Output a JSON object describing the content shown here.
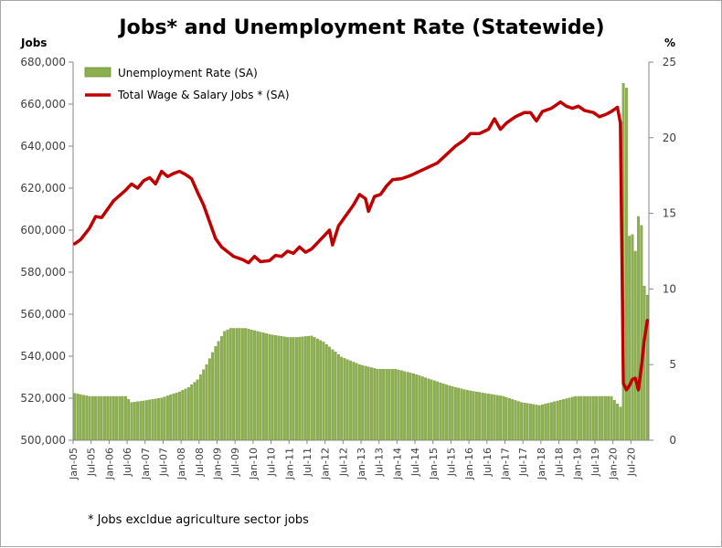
{
  "chart_data": {
    "type": "bar+line",
    "title": "Jobs* and Unemployment Rate (Statewide)",
    "left_axis_label": "Jobs",
    "right_axis_label": "%",
    "footnote": "* Jobs excldue agriculture sector jobs",
    "left_ylim": [
      500000,
      680000
    ],
    "left_yticks": [
      "500,000",
      "520,000",
      "540,000",
      "560,000",
      "580,000",
      "600,000",
      "620,000",
      "640,000",
      "660,000",
      "680,000"
    ],
    "right_ylim": [
      0,
      25
    ],
    "right_yticks": [
      "0",
      "5",
      "10",
      "15",
      "20",
      "25"
    ],
    "x_tick_labels": [
      "Jan-05",
      "Jul-05",
      "Jan-06",
      "Jul-06",
      "Jan-07",
      "Jul-07",
      "Jan-08",
      "Jul-08",
      "Jan-09",
      "Jul-09",
      "Jan-10",
      "Jul-10",
      "Jan-11",
      "Jul-11",
      "Jan-12",
      "Jul-12",
      "Jan-13",
      "Jul-13",
      "Jan-14",
      "Jul-14",
      "Jan-15",
      "Jul-15",
      "Jan-16",
      "Jul-16",
      "Jan-17",
      "Jul-17",
      "Jan-18",
      "Jul-18",
      "Jan-19",
      "Jul-19",
      "Jan-20",
      "Jul-20"
    ],
    "x_start": "2005-01",
    "x_end": "2020-12",
    "grid": false,
    "legend_position": "top-left",
    "colors": {
      "bars": "#8db04e",
      "bar_edge": "#6f8f38",
      "line": "#c00000"
    },
    "series": [
      {
        "name": "Unemployment Rate (SA)",
        "type": "bar",
        "axis": "right",
        "anchors": [
          [
            "2005-01",
            3.1
          ],
          [
            "2005-06",
            2.9
          ],
          [
            "2006-06",
            2.9
          ],
          [
            "2006-08",
            2.5
          ],
          [
            "2006-12",
            2.6
          ],
          [
            "2007-06",
            2.8
          ],
          [
            "2007-12",
            3.2
          ],
          [
            "2008-03",
            3.5
          ],
          [
            "2008-06",
            4.0
          ],
          [
            "2008-09",
            5.0
          ],
          [
            "2008-12",
            6.2
          ],
          [
            "2009-03",
            7.2
          ],
          [
            "2009-05",
            7.4
          ],
          [
            "2009-10",
            7.4
          ],
          [
            "2010-06",
            7.0
          ],
          [
            "2010-12",
            6.8
          ],
          [
            "2011-03",
            6.8
          ],
          [
            "2011-08",
            6.9
          ],
          [
            "2011-12",
            6.5
          ],
          [
            "2012-06",
            5.5
          ],
          [
            "2012-12",
            5.0
          ],
          [
            "2013-06",
            4.7
          ],
          [
            "2013-12",
            4.7
          ],
          [
            "2014-06",
            4.4
          ],
          [
            "2014-12",
            4.0
          ],
          [
            "2015-06",
            3.6
          ],
          [
            "2015-12",
            3.3
          ],
          [
            "2016-06",
            3.1
          ],
          [
            "2016-12",
            2.9
          ],
          [
            "2017-06",
            2.5
          ],
          [
            "2017-12",
            2.3
          ],
          [
            "2018-06",
            2.6
          ],
          [
            "2018-12",
            2.9
          ],
          [
            "2019-06",
            2.9
          ],
          [
            "2019-12",
            2.9
          ],
          [
            "2020-02",
            2.4
          ],
          [
            "2020-03",
            2.2
          ],
          [
            "2020-04",
            23.6
          ],
          [
            "2020-05",
            23.3
          ],
          [
            "2020-06",
            13.5
          ],
          [
            "2020-07",
            13.6
          ],
          [
            "2020-08",
            12.5
          ],
          [
            "2020-09",
            14.8
          ],
          [
            "2020-10",
            14.2
          ],
          [
            "2020-11",
            10.2
          ],
          [
            "2020-12",
            9.6
          ]
        ]
      },
      {
        "name": "Total Wage & Salary Jobs * (SA)",
        "type": "line",
        "axis": "left",
        "anchors": [
          [
            "2005-01",
            593500
          ],
          [
            "2005-03",
            595500
          ],
          [
            "2005-06",
            601000
          ],
          [
            "2005-08",
            606500
          ],
          [
            "2005-10",
            606000
          ],
          [
            "2005-12",
            610000
          ],
          [
            "2006-02",
            614000
          ],
          [
            "2006-06",
            619000
          ],
          [
            "2006-08",
            622000
          ],
          [
            "2006-10",
            620000
          ],
          [
            "2006-12",
            623500
          ],
          [
            "2007-02",
            625000
          ],
          [
            "2007-04",
            622000
          ],
          [
            "2007-06",
            628000
          ],
          [
            "2007-08",
            625500
          ],
          [
            "2007-10",
            627000
          ],
          [
            "2007-12",
            628000
          ],
          [
            "2008-02",
            626500
          ],
          [
            "2008-04",
            624500
          ],
          [
            "2008-06",
            618000
          ],
          [
            "2008-08",
            612000
          ],
          [
            "2008-10",
            604000
          ],
          [
            "2008-12",
            596000
          ],
          [
            "2009-02",
            592000
          ],
          [
            "2009-06",
            587500
          ],
          [
            "2009-09",
            586000
          ],
          [
            "2009-11",
            584500
          ],
          [
            "2010-01",
            587500
          ],
          [
            "2010-03",
            585000
          ],
          [
            "2010-06",
            585500
          ],
          [
            "2010-08",
            588000
          ],
          [
            "2010-10",
            587500
          ],
          [
            "2010-12",
            590000
          ],
          [
            "2011-02",
            589000
          ],
          [
            "2011-04",
            592000
          ],
          [
            "2011-06",
            589500
          ],
          [
            "2011-08",
            591000
          ],
          [
            "2011-10",
            594000
          ],
          [
            "2011-12",
            597000
          ],
          [
            "2012-02",
            600000
          ],
          [
            "2012-03",
            593000
          ],
          [
            "2012-05",
            602000
          ],
          [
            "2012-08",
            608000
          ],
          [
            "2012-10",
            612000
          ],
          [
            "2012-12",
            617000
          ],
          [
            "2013-02",
            615000
          ],
          [
            "2013-03",
            609000
          ],
          [
            "2013-05",
            616000
          ],
          [
            "2013-07",
            617000
          ],
          [
            "2013-09",
            621000
          ],
          [
            "2013-11",
            624000
          ],
          [
            "2014-02",
            624500
          ],
          [
            "2014-05",
            626000
          ],
          [
            "2014-08",
            628000
          ],
          [
            "2014-11",
            630000
          ],
          [
            "2015-02",
            632000
          ],
          [
            "2015-05",
            636000
          ],
          [
            "2015-08",
            640000
          ],
          [
            "2015-11",
            643000
          ],
          [
            "2016-01",
            646000
          ],
          [
            "2016-04",
            646000
          ],
          [
            "2016-07",
            648000
          ],
          [
            "2016-09",
            653000
          ],
          [
            "2016-11",
            648000
          ],
          [
            "2017-01",
            651000
          ],
          [
            "2017-04",
            654000
          ],
          [
            "2017-07",
            656000
          ],
          [
            "2017-09",
            656000
          ],
          [
            "2017-11",
            652000
          ],
          [
            "2018-01",
            656500
          ],
          [
            "2018-04",
            658000
          ],
          [
            "2018-07",
            661000
          ],
          [
            "2018-09",
            659000
          ],
          [
            "2018-11",
            658000
          ],
          [
            "2019-01",
            659000
          ],
          [
            "2019-03",
            657000
          ],
          [
            "2019-06",
            656000
          ],
          [
            "2019-08",
            654000
          ],
          [
            "2019-10",
            655000
          ],
          [
            "2019-12",
            656500
          ],
          [
            "2020-02",
            658500
          ],
          [
            "2020-03",
            651000
          ],
          [
            "2020-04",
            527000
          ],
          [
            "2020-05",
            524000
          ],
          [
            "2020-06",
            526000
          ],
          [
            "2020-07",
            529000
          ],
          [
            "2020-08",
            529500
          ],
          [
            "2020-09",
            524000
          ],
          [
            "2020-10",
            535000
          ],
          [
            "2020-11",
            548000
          ],
          [
            "2020-12",
            557000
          ]
        ]
      }
    ]
  }
}
